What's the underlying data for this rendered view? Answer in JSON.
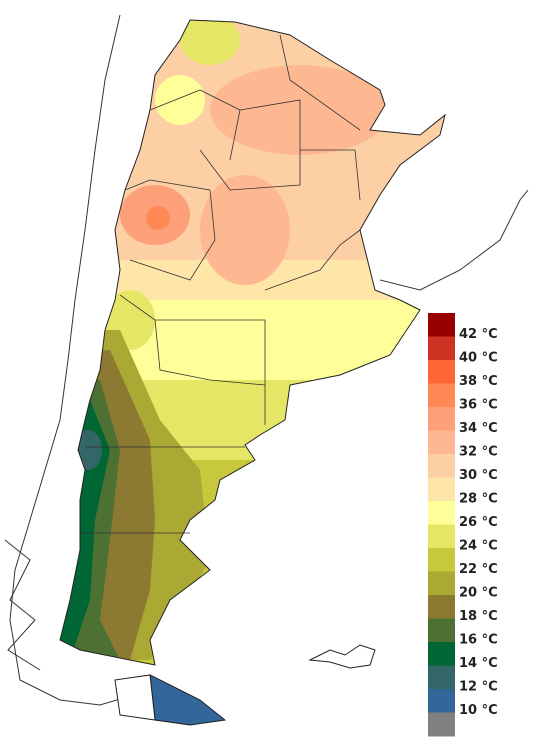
{
  "legend": {
    "labels": [
      "42 °C",
      "40 °C",
      "38 °C",
      "36 °C",
      "34 °C",
      "32 °C",
      "30 °C",
      "28 °C",
      "26 °C",
      "24 °C",
      "22 °C",
      "20 °C",
      "18 °C",
      "16 °C",
      "14 °C",
      "12 °C",
      "10 °C"
    ],
    "colors": [
      "#990000",
      "#cc3322",
      "#ff6633",
      "#ff8855",
      "#fda07a",
      "#fdb892",
      "#fdcfa4",
      "#fee6a8",
      "#ffff99",
      "#e6e666",
      "#c8c83c",
      "#aaa933",
      "#8c7a33",
      "#4d7033",
      "#006633",
      "#336666",
      "#336699",
      "#808080"
    ]
  }
}
